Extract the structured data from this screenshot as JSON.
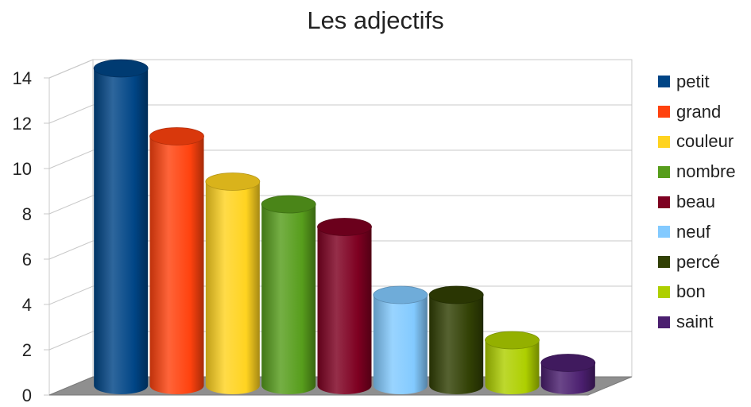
{
  "chart_data": {
    "type": "bar",
    "title": "Les adjectifs",
    "xlabel": "",
    "ylabel": "",
    "ylim": [
      0,
      14
    ],
    "yticks": [
      0,
      2,
      4,
      6,
      8,
      10,
      12,
      14
    ],
    "grid": true,
    "legend_position": "right",
    "series": [
      {
        "name": "petit",
        "value": 14,
        "color": "#004586"
      },
      {
        "name": "grand",
        "value": 11,
        "color": "#ff420e"
      },
      {
        "name": "couleur",
        "value": 9,
        "color": "#ffd320"
      },
      {
        "name": "nombre",
        "value": 8,
        "color": "#579d1c"
      },
      {
        "name": "beau",
        "value": 7,
        "color": "#7e0021"
      },
      {
        "name": "neuf",
        "value": 4,
        "color": "#83caff"
      },
      {
        "name": "percé",
        "value": 4,
        "color": "#314004"
      },
      {
        "name": "bon",
        "value": 2,
        "color": "#aecf00"
      },
      {
        "name": "saint",
        "value": 1,
        "color": "#4b1f6f"
      }
    ]
  }
}
